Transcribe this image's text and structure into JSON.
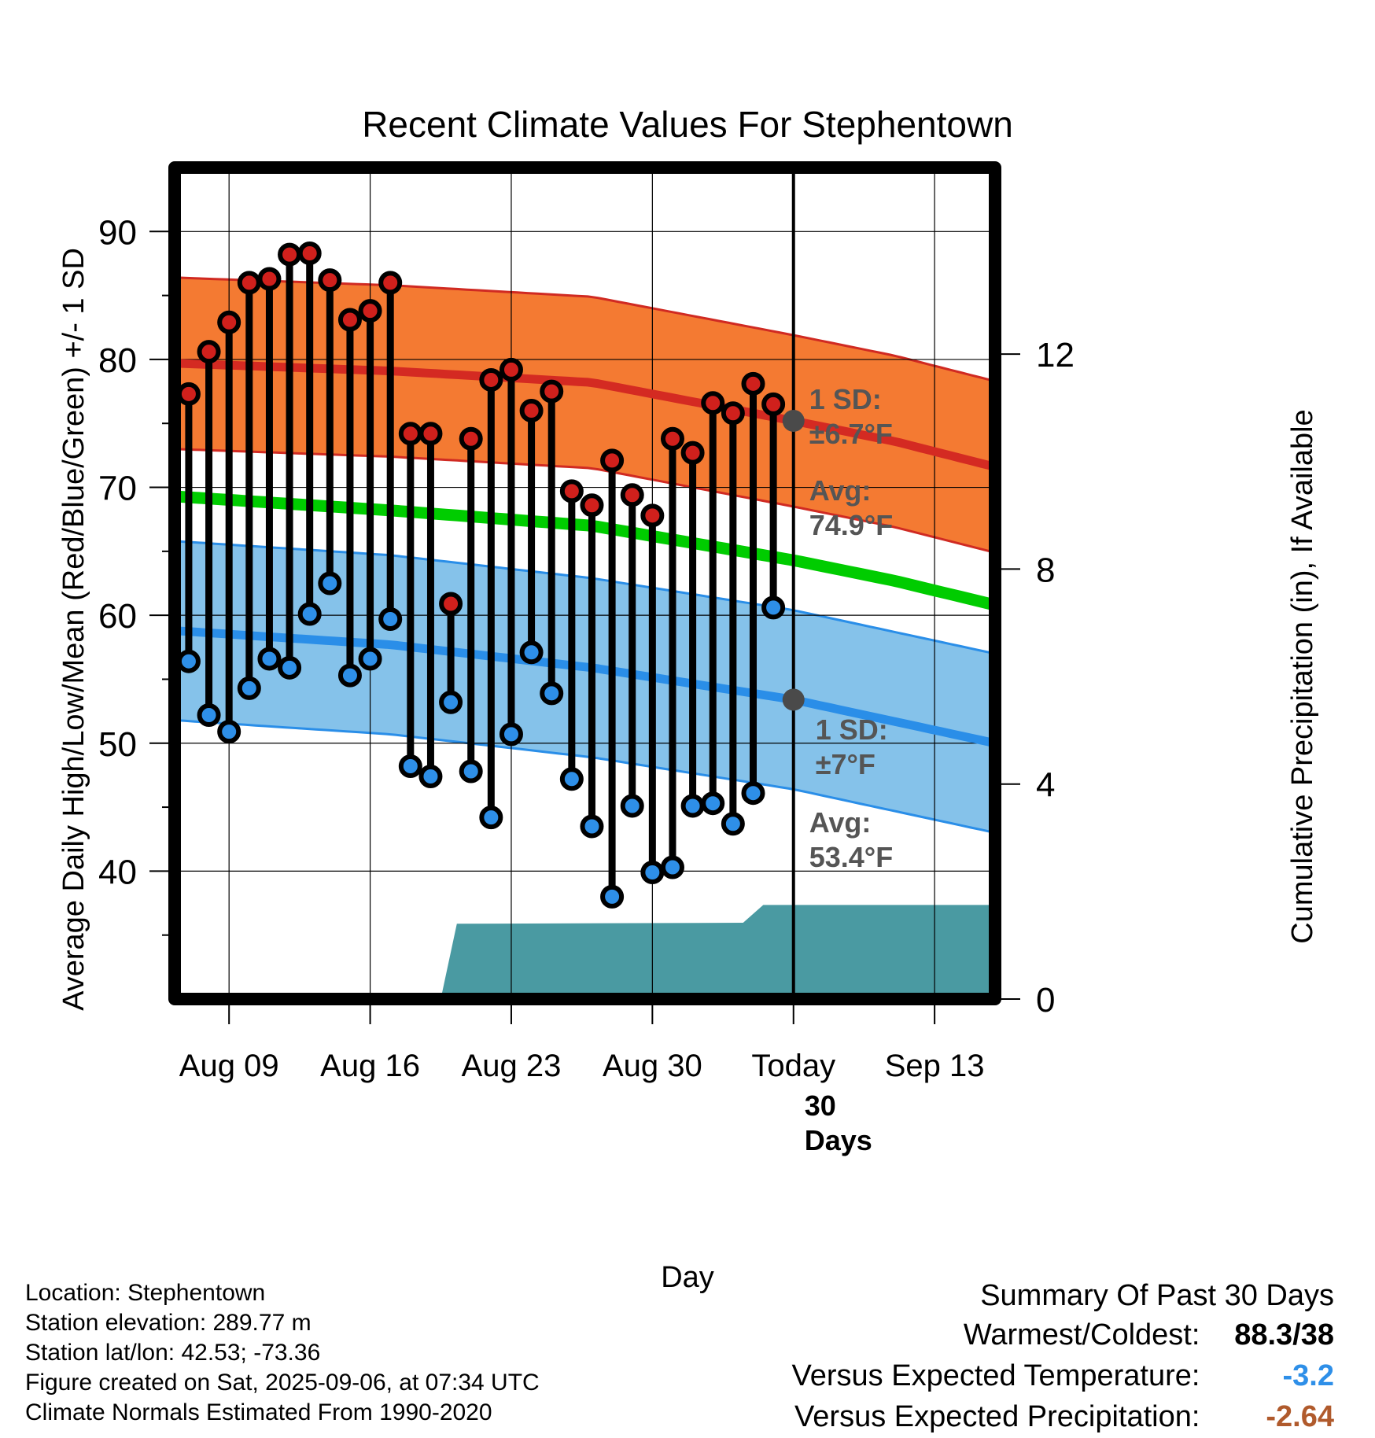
{
  "colors": {
    "high_marker": "#d0201c",
    "low_marker": "#2e8fe8",
    "high_band": "#f47a32",
    "high_band_edge": "#d02a22",
    "high_mean": "#d42a22",
    "low_band": "#85c2ea",
    "low_band_edge": "#2a8ee8",
    "low_mean": "#2a8ee8",
    "mean_line": "#00cc00",
    "precip_fill": "#4a9aa2",
    "avg_dot": "#4a4a4a",
    "annotation_text": "#555555",
    "temp_departure": "#2e8fe8",
    "precip_departure": "#b05a2c"
  },
  "chart_data": {
    "type": "line",
    "title": "Recent Climate Values For Stephentown",
    "xlabel": "Day",
    "ylabel_left": "Average Daily High/Low/Mean (Red/Blue/Green) +/- 1 SD",
    "ylabel_right": "Cumulative Precipitation (in), If Available",
    "x_tick_labels": [
      "Aug 09",
      "Aug 16",
      "Aug 23",
      "Aug 30",
      "Today",
      "Sep 13"
    ],
    "x_tick_days": [
      2,
      9,
      16,
      23,
      30,
      37
    ],
    "xlim_days": [
      -0.7,
      40
    ],
    "today_day": 30,
    "ylim_left": [
      30,
      95
    ],
    "y_ticks_left": [
      40,
      50,
      60,
      70,
      80,
      90
    ],
    "ylim_right": [
      0,
      15.47
    ],
    "y_ticks_right": [
      0,
      4,
      8,
      12
    ],
    "days": [
      0,
      1,
      2,
      3,
      4,
      5,
      6,
      7,
      8,
      9,
      10,
      11,
      12,
      13,
      14,
      15,
      16,
      17,
      18,
      19,
      20,
      21,
      22,
      23,
      24,
      25,
      26,
      27,
      28,
      29
    ],
    "highs": [
      77.3,
      80.6,
      82.9,
      86.0,
      86.3,
      88.2,
      88.3,
      86.2,
      83.1,
      83.8,
      86.0,
      74.2,
      74.2,
      60.9,
      73.8,
      78.4,
      79.2,
      76.0,
      77.5,
      69.7,
      68.6,
      72.1,
      69.4,
      67.8,
      73.8,
      72.7,
      76.6,
      75.8,
      78.1,
      76.5
    ],
    "lows": [
      56.4,
      52.2,
      50.9,
      54.3,
      56.6,
      55.9,
      60.1,
      62.5,
      55.3,
      56.6,
      59.7,
      48.2,
      47.4,
      53.2,
      47.8,
      44.2,
      50.7,
      57.1,
      53.9,
      47.2,
      43.5,
      38.0,
      45.1,
      39.9,
      40.3,
      45.1,
      45.3,
      43.7,
      46.1,
      60.6
    ],
    "normal_high": {
      "days": [
        -0.7,
        10,
        20,
        30,
        35,
        40
      ],
      "mean": [
        79.7,
        79.1,
        78.2,
        75.2,
        73.6,
        71.6
      ],
      "sd": 6.7
    },
    "normal_low": {
      "days": [
        -0.7,
        10,
        20,
        30,
        35,
        40
      ],
      "mean": [
        58.8,
        57.7,
        55.9,
        53.4,
        51.7,
        50.0
      ],
      "sd": 7
    },
    "normal_mean": {
      "days": [
        -0.7,
        10,
        20,
        30,
        35,
        40
      ],
      "values": [
        69.3,
        68.2,
        67.0,
        64.3,
        62.7,
        60.8
      ]
    },
    "precip_cumulative": {
      "days": [
        -0.7,
        12.5,
        13.3,
        27.5,
        28.5,
        40
      ],
      "values": [
        0,
        0,
        1.4,
        1.42,
        1.75,
        1.75
      ]
    },
    "annotations": {
      "high_sd": [
        "1 SD:",
        "±6.7°F"
      ],
      "high_avg": [
        "Avg:",
        "74.9°F"
      ],
      "low_sd": [
        "1 SD:",
        "±7°F"
      ],
      "low_avg": [
        "Avg:",
        "53.4°F"
      ],
      "precip_window": [
        "30",
        "Days"
      ]
    },
    "grid": true
  },
  "station": {
    "location": "Location: Stephentown",
    "elevation": "Station elevation: 289.77 m",
    "latlon": "Station lat/lon: 42.53; -73.36",
    "created": "Figure created on Sat, 2025-09-06, at 07:34 UTC",
    "normals": "Climate Normals Estimated From 1990-2020"
  },
  "summary": {
    "heading": "Summary Of Past 30 Days",
    "warmest_label": "Warmest/Coldest:",
    "warmest_value": "88.3/38",
    "temp_label": "Versus Expected Temperature:",
    "temp_value": "-3.2",
    "precip_label": "Versus Expected Precipitation:",
    "precip_value": "-2.64"
  }
}
